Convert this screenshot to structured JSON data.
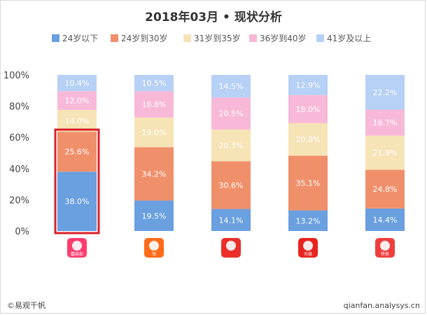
{
  "chart_data": {
    "type": "bar",
    "stacked": true,
    "title": "2018年03月 • 现状分析",
    "categories": [
      "app-1",
      "app-2",
      "app-3",
      "app-4",
      "app-5"
    ],
    "category_icons": [
      {
        "name": "mushroom-app-icon",
        "color": "#ff3d6e",
        "text": "蘑菇街"
      },
      {
        "name": "taobao-app-icon",
        "color": "#ff6a1a",
        "text": "淘"
      },
      {
        "name": "jd-app-icon",
        "color": "#ea2f28",
        "text": ""
      },
      {
        "name": "tmall-app-icon",
        "color": "#e8221f",
        "text": "天猫"
      },
      {
        "name": "vip-app-icon",
        "color": "#ef3d3d",
        "text": "特卖"
      }
    ],
    "series": [
      {
        "name": "24岁以下",
        "color": "#6a9fe0",
        "values": [
          38.0,
          19.5,
          14.1,
          13.2,
          14.4
        ]
      },
      {
        "name": "24岁到30岁",
        "color": "#f0906b",
        "values": [
          25.6,
          34.2,
          30.6,
          35.1,
          24.8
        ]
      },
      {
        "name": "31岁到35岁",
        "color": "#f6e3b6",
        "values": [
          14.0,
          19.0,
          20.3,
          20.8,
          21.9
        ]
      },
      {
        "name": "36岁到40岁",
        "color": "#f8b9d8",
        "values": [
          12.0,
          16.8,
          20.5,
          18.0,
          16.7
        ]
      },
      {
        "name": "41岁及以上",
        "color": "#b6d0f6",
        "values": [
          10.4,
          10.5,
          14.5,
          12.9,
          22.2
        ]
      }
    ],
    "label_precision_hidden": [
      2,
      2
    ],
    "ylim": [
      0,
      100
    ],
    "yticks": [
      "0%",
      "20%",
      "40%",
      "60%",
      "80%",
      "100%"
    ],
    "highlight_category_index": 0,
    "highlight_color": "#d9202a",
    "grid": false,
    "legend_position": "top"
  },
  "footer": {
    "source": "©易观千帆",
    "website": "qianfan.analysys.cn"
  }
}
